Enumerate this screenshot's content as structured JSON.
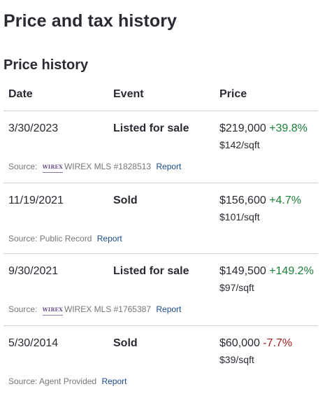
{
  "page_title": "Price and tax history",
  "section_title": "Price history",
  "columns": {
    "date": "Date",
    "event": "Event",
    "price": "Price"
  },
  "rows": [
    {
      "date": "3/30/2023",
      "event": "Listed for sale",
      "price": "$219,000",
      "change": "+39.8%",
      "per_sqft": "$142/sqft",
      "source_prefix": "Source:",
      "source_logo": "WIREX",
      "source": "WIREX MLS #1828513",
      "report": "Report"
    },
    {
      "date": "11/19/2021",
      "event": "Sold",
      "price": "$156,600",
      "change": "+4.7%",
      "per_sqft": "$101/sqft",
      "source_prefix": "Source:",
      "source": "Public Record",
      "report": "Report"
    },
    {
      "date": "9/30/2021",
      "event": "Listed for sale",
      "price": "$149,500",
      "change": "+149.2%",
      "per_sqft": "$97/sqft",
      "source_prefix": "Source:",
      "source_logo": "WIREX",
      "source": "WIREX MLS #1765387",
      "report": "Report"
    },
    {
      "date": "5/30/2014",
      "event": "Sold",
      "price": "$60,000",
      "change": "-7.7%",
      "per_sqft": "$39/sqft",
      "source_prefix": "Source:",
      "source": "Agent Provided",
      "report": "Report"
    }
  ],
  "colors": {
    "positive": "#1a7f37",
    "negative": "#a51c1c",
    "link": "#1a4a8a"
  }
}
